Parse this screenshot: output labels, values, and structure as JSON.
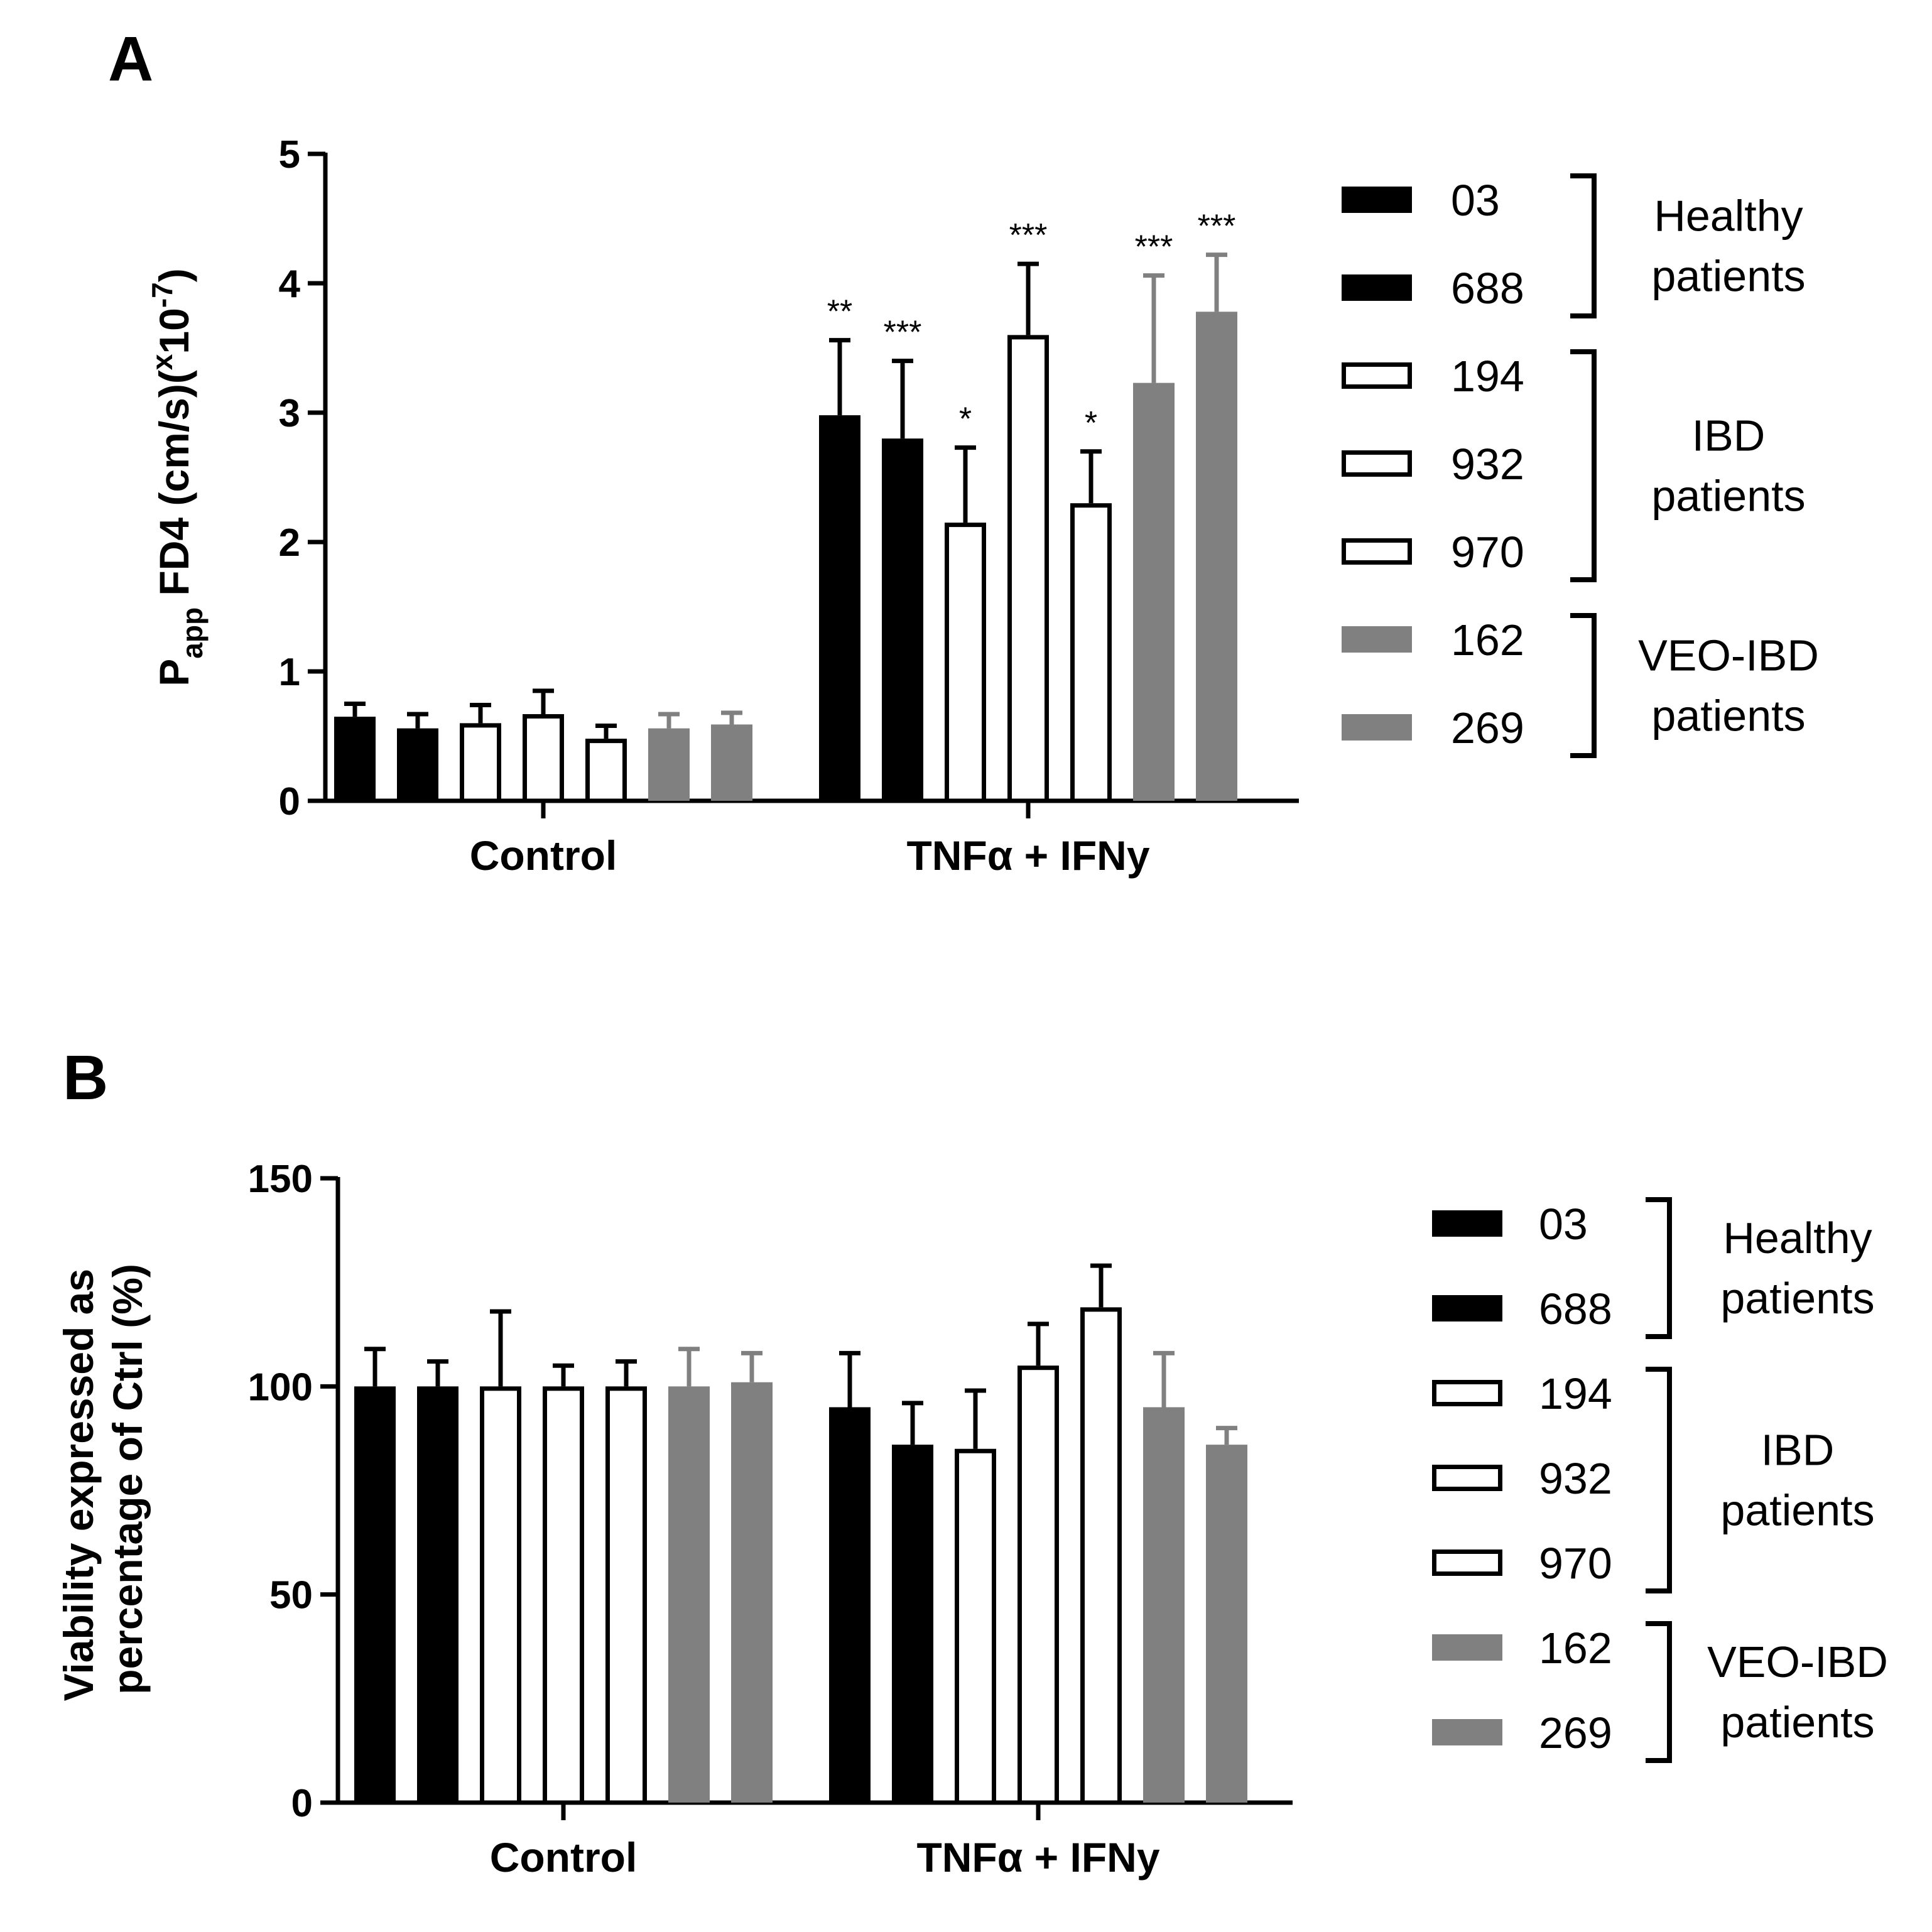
{
  "chart_data": [
    {
      "type": "bar",
      "panel_label": "A",
      "title": "",
      "xlabel": "",
      "ylabel": {
        "main": "P",
        "sub": "app",
        "rest": " FD4 (cm/s)(",
        "sup1": "x",
        "mid": "10",
        "sup2": "-7",
        "end": ")"
      },
      "ylim": [
        0,
        5
      ],
      "yticks": [
        "0",
        "1",
        "2",
        "3",
        "4",
        "5"
      ],
      "categories": [
        "Control",
        "TNFα + IFNy"
      ],
      "series": [
        {
          "name": "03",
          "values": [
            0.65,
            2.98
          ],
          "errors": [
            0.1,
            0.58
          ],
          "significance": [
            "",
            "**"
          ],
          "fill": "#000000"
        },
        {
          "name": "688",
          "values": [
            0.56,
            2.8
          ],
          "errors": [
            0.11,
            0.6
          ],
          "significance": [
            "",
            "***"
          ],
          "fill": "#000000"
        },
        {
          "name": "194",
          "values": [
            0.6,
            2.15
          ],
          "errors": [
            0.14,
            0.58
          ],
          "significance": [
            "",
            "*"
          ],
          "fill": "#ffffff"
        },
        {
          "name": "932",
          "values": [
            0.67,
            3.6
          ],
          "errors": [
            0.18,
            0.55
          ],
          "significance": [
            "",
            "***"
          ],
          "fill": "#ffffff"
        },
        {
          "name": "970",
          "values": [
            0.48,
            2.3
          ],
          "errors": [
            0.1,
            0.4
          ],
          "significance": [
            "",
            "*"
          ],
          "fill": "#ffffff"
        },
        {
          "name": "162",
          "values": [
            0.56,
            3.23
          ],
          "errors": [
            0.11,
            0.83
          ],
          "significance": [
            "",
            "***"
          ],
          "fill": "#808080"
        },
        {
          "name": "269",
          "values": [
            0.59,
            3.78
          ],
          "errors": [
            0.09,
            0.44
          ],
          "significance": [
            "",
            "***"
          ],
          "fill": "#808080"
        }
      ],
      "legend_groups": [
        {
          "label_lines": [
            "Healthy",
            "patients"
          ],
          "members": [
            "03",
            "688"
          ]
        },
        {
          "label_lines": [
            "IBD",
            "patients"
          ],
          "members": [
            "194",
            "932",
            "970"
          ]
        },
        {
          "label_lines": [
            "VEO-IBD",
            "patients"
          ],
          "members": [
            "162",
            "269"
          ]
        }
      ]
    },
    {
      "type": "bar",
      "panel_label": "B",
      "title": "",
      "xlabel": "",
      "ylabel_lines": [
        "Viability expressed as",
        "percentage of Ctrl (%)"
      ],
      "ylim": [
        0,
        150
      ],
      "yticks": [
        "0",
        "50",
        "100",
        "150"
      ],
      "categories": [
        "Control",
        "TNFα + IFNy"
      ],
      "series": [
        {
          "name": "03",
          "values": [
            100,
            95
          ],
          "errors": [
            9,
            13
          ],
          "fill": "#000000"
        },
        {
          "name": "688",
          "values": [
            100,
            86
          ],
          "errors": [
            6,
            10
          ],
          "fill": "#000000"
        },
        {
          "name": "194",
          "values": [
            100,
            85
          ],
          "errors": [
            18,
            14
          ],
          "fill": "#ffffff"
        },
        {
          "name": "932",
          "values": [
            100,
            105
          ],
          "errors": [
            5,
            10
          ],
          "fill": "#ffffff"
        },
        {
          "name": "970",
          "values": [
            100,
            119
          ],
          "errors": [
            6,
            10
          ],
          "fill": "#ffffff"
        },
        {
          "name": "162",
          "values": [
            100,
            95
          ],
          "errors": [
            9,
            13
          ],
          "fill": "#808080"
        },
        {
          "name": "269",
          "values": [
            101,
            86
          ],
          "errors": [
            7,
            4
          ],
          "fill": "#808080"
        }
      ],
      "legend_groups": [
        {
          "label_lines": [
            "Healthy",
            "patients"
          ],
          "members": [
            "03",
            "688"
          ]
        },
        {
          "label_lines": [
            "IBD",
            "patients"
          ],
          "members": [
            "194",
            "932",
            "970"
          ]
        },
        {
          "label_lines": [
            "VEO-IBD",
            "patients"
          ],
          "members": [
            "162",
            "269"
          ]
        }
      ]
    }
  ]
}
